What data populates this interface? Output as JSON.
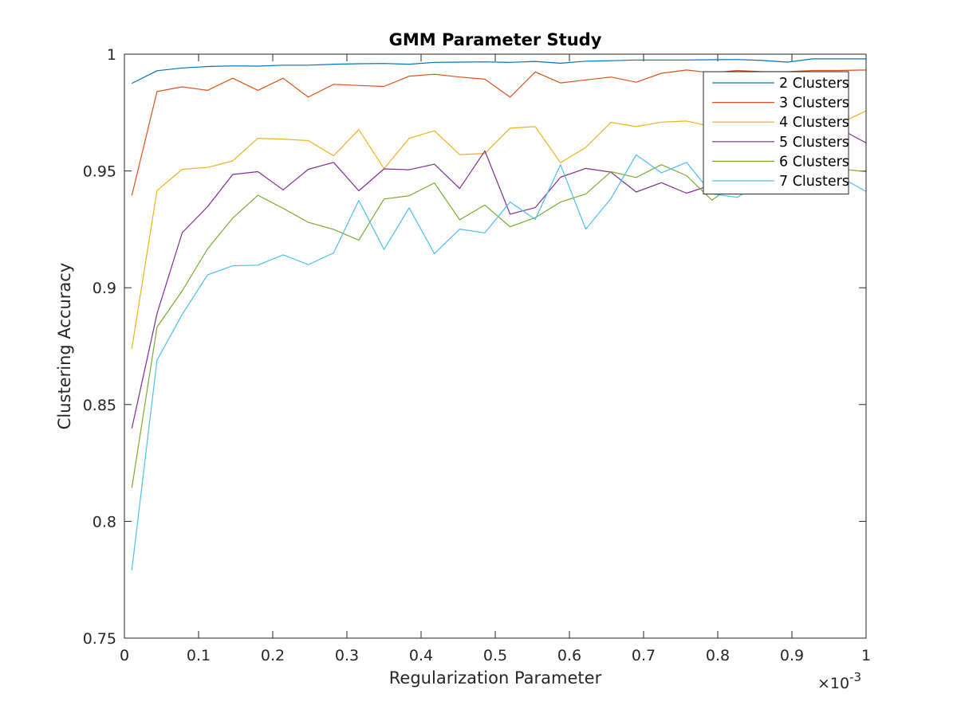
{
  "chart_data": {
    "type": "line",
    "title": "GMM Parameter Study",
    "xlabel": "Regularization Parameter",
    "ylabel": "Clustering Accuracy",
    "x_exponent": {
      "base": "×10",
      "power": "-3"
    },
    "xlim": [
      0,
      1
    ],
    "ylim": [
      0.75,
      1
    ],
    "xticks": [
      0,
      0.1,
      0.2,
      0.3,
      0.4,
      0.5,
      0.6,
      0.7,
      0.8,
      0.9,
      1
    ],
    "xtick_labels": [
      "0",
      "0.1",
      "0.2",
      "0.3",
      "0.4",
      "0.5",
      "0.6",
      "0.7",
      "0.8",
      "0.9",
      "1"
    ],
    "yticks": [
      0.75,
      0.8,
      0.85,
      0.9,
      0.95,
      1
    ],
    "ytick_labels": [
      "0.75",
      "0.8",
      "0.85",
      "0.9",
      "0.95",
      "1"
    ],
    "grid": false,
    "legend_position": "top-right",
    "x": [
      0.01,
      0.044,
      0.078,
      0.112,
      0.146,
      0.18,
      0.214,
      0.248,
      0.282,
      0.316,
      0.35,
      0.384,
      0.418,
      0.452,
      0.486,
      0.52,
      0.554,
      0.588,
      0.622,
      0.656,
      0.69,
      0.724,
      0.758,
      0.792,
      0.826,
      0.86,
      0.894,
      0.928,
      0.962,
      1.0
    ],
    "series": [
      {
        "name": "2 Clusters",
        "color": "#0072BD",
        "values": [
          0.9875,
          0.9929,
          0.9941,
          0.9947,
          0.995,
          0.9949,
          0.9953,
          0.9953,
          0.9957,
          0.9959,
          0.996,
          0.9957,
          0.9965,
          0.9966,
          0.9967,
          0.9965,
          0.9969,
          0.9961,
          0.997,
          0.9972,
          0.9975,
          0.9975,
          0.9975,
          0.9976,
          0.9977,
          0.9973,
          0.9966,
          0.998,
          0.998,
          0.998
        ]
      },
      {
        "name": "3 Clusters",
        "color": "#D95319",
        "values": [
          0.9395,
          0.984,
          0.986,
          0.9845,
          0.9897,
          0.9845,
          0.9897,
          0.9816,
          0.9871,
          0.9866,
          0.9862,
          0.9906,
          0.9914,
          0.9902,
          0.9893,
          0.9816,
          0.9924,
          0.9877,
          0.989,
          0.9902,
          0.988,
          0.9918,
          0.9932,
          0.992,
          0.993,
          0.9925,
          0.9925,
          0.993,
          0.993,
          0.9932
        ]
      },
      {
        "name": "4 Clusters",
        "color": "#EDB120",
        "values": [
          0.874,
          0.9416,
          0.9507,
          0.9515,
          0.9543,
          0.964,
          0.9636,
          0.963,
          0.9565,
          0.9677,
          0.951,
          0.964,
          0.9672,
          0.957,
          0.9575,
          0.9683,
          0.969,
          0.9535,
          0.9601,
          0.9708,
          0.969,
          0.9709,
          0.9714,
          0.969,
          0.97,
          0.97,
          0.971,
          0.97,
          0.97,
          0.9757
        ]
      },
      {
        "name": "5 Clusters",
        "color": "#7E2F8E",
        "values": [
          0.8398,
          0.8889,
          0.9236,
          0.9347,
          0.9485,
          0.9497,
          0.9419,
          0.9507,
          0.9537,
          0.9415,
          0.9509,
          0.9505,
          0.9529,
          0.9425,
          0.9586,
          0.9315,
          0.9343,
          0.9473,
          0.9511,
          0.9495,
          0.941,
          0.945,
          0.9405,
          0.944,
          0.943,
          0.945,
          0.948,
          0.952,
          0.9685,
          0.962
        ]
      },
      {
        "name": "6 Clusters",
        "color": "#77AC30",
        "values": [
          0.8143,
          0.8832,
          0.8987,
          0.9166,
          0.9298,
          0.9396,
          0.934,
          0.928,
          0.925,
          0.9204,
          0.938,
          0.9394,
          0.9449,
          0.9291,
          0.9354,
          0.9261,
          0.93,
          0.9367,
          0.9401,
          0.9497,
          0.9472,
          0.9527,
          0.948,
          0.9375,
          0.945,
          0.948,
          0.95,
          0.952,
          0.951,
          0.9497
        ]
      },
      {
        "name": "7 Clusters",
        "color": "#4DBEEE",
        "values": [
          0.7791,
          0.869,
          0.8886,
          0.9055,
          0.9094,
          0.9097,
          0.9141,
          0.9099,
          0.9149,
          0.9374,
          0.9164,
          0.9342,
          0.9146,
          0.9251,
          0.9235,
          0.9367,
          0.9293,
          0.9527,
          0.9251,
          0.9382,
          0.9569,
          0.9492,
          0.9537,
          0.9402,
          0.9387,
          0.945,
          0.948,
          0.95,
          0.948,
          0.9412
        ]
      }
    ]
  }
}
